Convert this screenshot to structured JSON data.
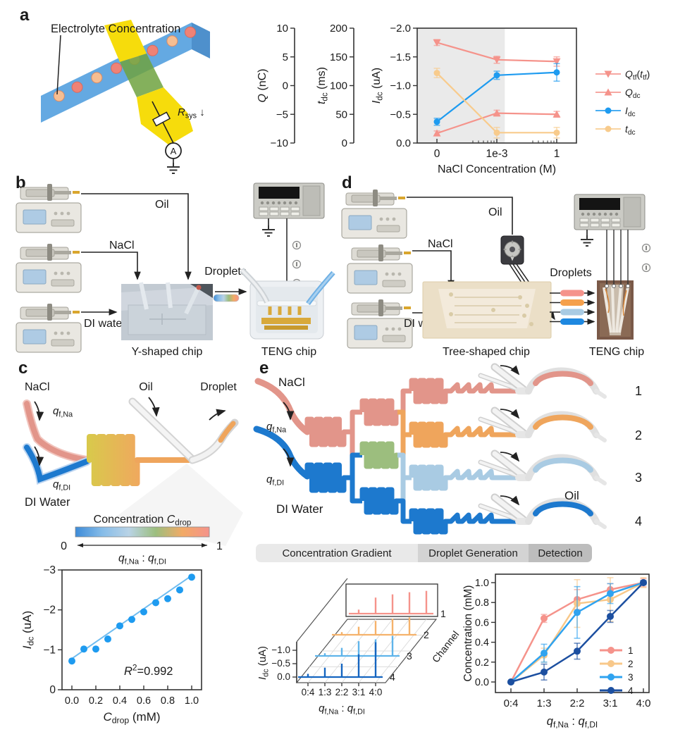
{
  "panels": {
    "a": "a",
    "b": "b",
    "c": "c",
    "d": "d",
    "e": "e"
  },
  "panel_a": {
    "schematic": {
      "title": "Electrolyte Concentration",
      "resistor": "*R*_{sys} ↓",
      "ammeter": "A"
    },
    "aux_axes": [
      {
        "label": "*Q* (nC)",
        "ticks": [
          "10",
          "5",
          "0",
          "-5",
          "-10"
        ]
      },
      {
        "label": "*t*_{dc} (ms)",
        "ticks": [
          "200",
          "150",
          "100",
          "50",
          "0"
        ]
      }
    ]
  },
  "panel_b": {
    "labels": {
      "oil": "Oil",
      "nacl": "NaCl",
      "di": "DI water",
      "droplets": "Droplets",
      "chip": "Y-shaped chip",
      "teng": "TENG chip"
    }
  },
  "panel_c": {
    "labels": {
      "nacl": "NaCl",
      "oil": "Oil",
      "droplet": "Droplet",
      "q_na": "*q*_{f,Na}",
      "q_di": "*q*_{f,DI}",
      "di_water": "DI Water",
      "colorbar_title": "Concentration *C*_{drop}",
      "cb_min": "0",
      "cb_max": "1",
      "ratio": "*q*_{f,Na} : *q*_{f,DI}"
    },
    "colorbar_stops": [
      "#3D8BD8",
      "#86BCE8",
      "#B9D3E6",
      "#9CBE7E",
      "#F2AA66",
      "#F5938B"
    ],
    "mixer_gradient": [
      "#D9C84C",
      "#EFA95E"
    ]
  },
  "panel_d": {
    "labels": {
      "oil": "Oil",
      "nacl": "NaCl",
      "di": "DI water",
      "droplets": "Droplets",
      "chip": "Tree-shaped chip",
      "teng": "TENG chip"
    },
    "droplet_colors": [
      "#F5938B",
      "#F5A04C",
      "#A9CBE3",
      "#1E88E0"
    ]
  },
  "panel_e": {
    "labels": {
      "nacl": "NaCl",
      "q_na": "*q*_{f,Na}",
      "q_di": "*q*_{f,DI}",
      "di_water": "DI Water",
      "oil": "Oil",
      "outputs": [
        "1",
        "2",
        "3",
        "4"
      ]
    },
    "sections": [
      "Concentration Gradient",
      "Droplet Generation",
      "Detection"
    ],
    "channel_colors": [
      "#E2958A",
      "#EFA55C",
      "#A9CBE3",
      "#1D79CE"
    ],
    "mixer_green": "#9CBE7E"
  },
  "chart_data": [
    {
      "id": "panel_a_vs_nacl",
      "type": "line",
      "categories": [
        "0",
        "1e-3",
        "1"
      ],
      "xlabel": "NaCl Concentration (M)",
      "ylabel": "*I*_{dc} (uA)",
      "yticks": [
        "-2.0",
        "-1.5",
        "-1.0",
        "-0.5",
        "0.0"
      ],
      "ylim": [
        -2,
        0
      ],
      "y_inverted": true,
      "shaded_fraction": 0.55,
      "series": [
        {
          "name": "*Q*_{tf}(*t*_{tf})",
          "marker": "triangle-down",
          "color": "#F5938B",
          "values": [
            -1.75,
            -1.45,
            -1.42
          ],
          "errors": [
            0.05,
            0.06,
            0.08
          ]
        },
        {
          "name": "*Q*_{dc}",
          "marker": "triangle-up",
          "color": "#F5938B",
          "values": [
            -0.17,
            -0.52,
            -0.5
          ],
          "errors": [
            0.04,
            0.05,
            0.05
          ]
        },
        {
          "name": "*I*_{dc}",
          "marker": "circle",
          "color": "#1E9BF0",
          "values": [
            -0.37,
            -1.18,
            -1.23
          ],
          "errors": [
            0.06,
            0.07,
            0.15
          ]
        },
        {
          "name": "*t*_{dc}",
          "marker": "circle",
          "color": "#F8CB8C",
          "values": [
            -1.22,
            -0.18,
            -0.18
          ],
          "errors": [
            0.08,
            0.09,
            0.09
          ]
        }
      ],
      "legend_position": "right"
    },
    {
      "id": "panel_c_calibration",
      "type": "scatter",
      "x": [
        0.0,
        0.1,
        0.2,
        0.3,
        0.4,
        0.5,
        0.6,
        0.7,
        0.8,
        0.9,
        1.0
      ],
      "y": [
        -0.72,
        -1.02,
        -1.02,
        -1.27,
        -1.6,
        -1.76,
        -1.95,
        -2.18,
        -2.28,
        -2.5,
        -2.82
      ],
      "fit_line": {
        "x": [
          0.0,
          1.0
        ],
        "y": [
          -0.78,
          -2.86
        ]
      },
      "annotation": "*R*^{2}=0.992",
      "xlabel": "*C*_{drop} (mM)",
      "ylabel": "*I*_{dc} (uA)",
      "xticks": [
        "0.0",
        "0.2",
        "0.4",
        "0.6",
        "0.8",
        "1.0"
      ],
      "yticks": [
        "-3",
        "-2",
        "-1",
        "0"
      ],
      "xlim": [
        0,
        1
      ],
      "ylim": [
        -3,
        0
      ],
      "y_inverted": true,
      "point_color": "#1E9BF0",
      "line_color": "#6FBCEF"
    },
    {
      "id": "panel_e_waterfall",
      "type": "3d-spikes",
      "categories": [
        "0:4",
        "1:3",
        "2:2",
        "3:1",
        "4:0"
      ],
      "xlabel": "*q*_{f,Na} : *q*_{f,DI}",
      "zlabel": "*I*_{dc} (uA)",
      "zticks": [
        "0.0",
        "-0.5",
        "-1.0"
      ],
      "zlim": [
        0,
        -1
      ],
      "depth_label": "Channel",
      "channels": [
        {
          "name": "1",
          "color": "#F5938B",
          "values": [
            -0.15,
            -0.6,
            -0.72,
            -0.8,
            -0.85
          ]
        },
        {
          "name": "2",
          "color": "#F5B26B",
          "values": [
            -0.1,
            -0.3,
            -0.52,
            -0.6,
            -0.65
          ]
        },
        {
          "name": "3",
          "color": "#5FB4EA",
          "values": [
            -0.1,
            -0.3,
            -0.55,
            -0.62,
            -0.75
          ]
        },
        {
          "name": "4",
          "color": "#1565C0",
          "values": [
            -0.12,
            -0.35,
            -0.5,
            -0.85,
            -1.3
          ]
        }
      ]
    },
    {
      "id": "panel_e_concentration",
      "type": "line",
      "categories": [
        "0:4",
        "1:3",
        "2:2",
        "3:1",
        "4:0"
      ],
      "xlabel": "*q*_{f,Na} : *q*_{f,DI}",
      "ylabel": "Concentration (mM)",
      "yticks": [
        "1.0",
        "0.8",
        "0.6",
        "0.4",
        "0.2",
        "0.0"
      ],
      "ylim": [
        0,
        1
      ],
      "series": [
        {
          "name": "1",
          "color": "#F5938B",
          "values": [
            0.0,
            0.64,
            0.83,
            0.93,
            1.0
          ],
          "errors": [
            0.0,
            0.04,
            0.1,
            0.06,
            0.04
          ]
        },
        {
          "name": "2",
          "color": "#F8C88A",
          "values": [
            0.0,
            0.27,
            0.79,
            0.83,
            1.0
          ],
          "errors": [
            0.0,
            0.07,
            0.24,
            0.22,
            0.05
          ]
        },
        {
          "name": "3",
          "color": "#2FA3F0",
          "values": [
            0.0,
            0.29,
            0.7,
            0.89,
            1.0
          ],
          "errors": [
            0.0,
            0.09,
            0.26,
            0.1,
            0.02
          ]
        },
        {
          "name": "4",
          "color": "#1C4FA0",
          "values": [
            0.0,
            0.1,
            0.31,
            0.66,
            1.0
          ],
          "errors": [
            0.0,
            0.08,
            0.08,
            0.06,
            0.02
          ]
        }
      ],
      "legend": [
        "1",
        "2",
        "3",
        "4"
      ],
      "legend_position": "inside-bottom-right"
    }
  ]
}
